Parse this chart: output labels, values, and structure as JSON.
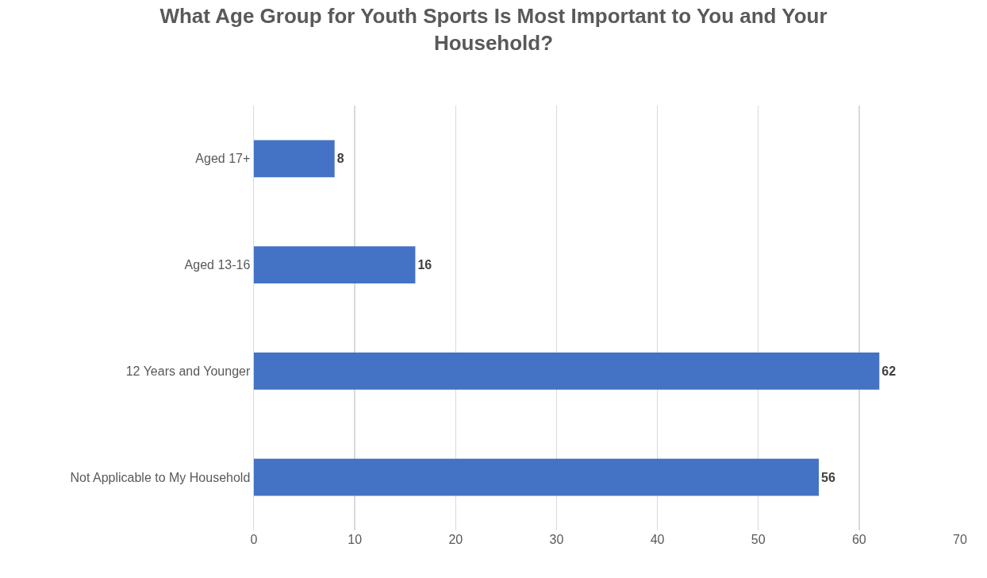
{
  "chart_data": {
    "type": "bar",
    "orientation": "horizontal",
    "title": "What Age Group for Youth Sports Is Most Important to You and Your Household?",
    "categories": [
      "Aged 17+",
      "Aged 13-16",
      "12 Years and Younger",
      "Not Applicable to My Household"
    ],
    "values": [
      8,
      16,
      62,
      56
    ],
    "color": "#4472c4",
    "xlim": [
      0,
      70
    ],
    "xticks": [
      0,
      10,
      20,
      30,
      40,
      50,
      60,
      70
    ],
    "grid": "x",
    "data_labels": true
  }
}
